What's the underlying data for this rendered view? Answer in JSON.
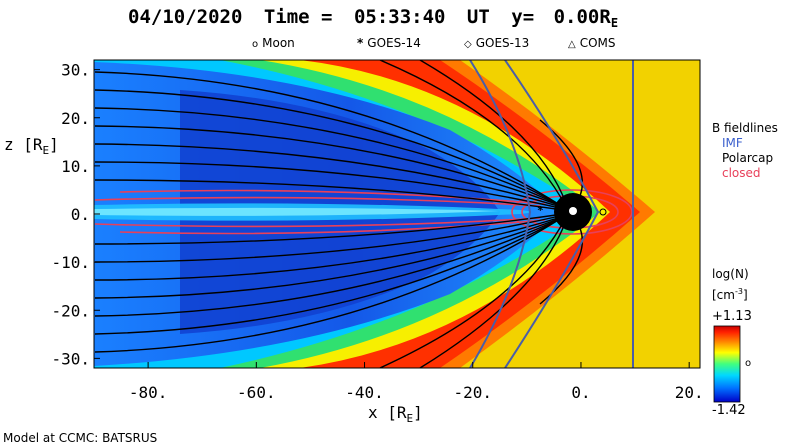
{
  "header": {
    "date": "04/10/2020",
    "time_label": "Time =",
    "time": "05:33:40",
    "time_unit": "UT",
    "slice_label": "y=",
    "slice_value": "0.00",
    "slice_unit": "R",
    "slice_unit_sub": "E"
  },
  "markers": [
    {
      "symbol": "o",
      "label": "Moon"
    },
    {
      "symbol": "*",
      "label": "GOES-14"
    },
    {
      "symbol": "◇",
      "label": "GOES-13"
    },
    {
      "symbol": "△",
      "label": "COMS"
    }
  ],
  "legend": {
    "title": "B fieldlines",
    "items": [
      {
        "label": "IMF",
        "color": "#3a5fcd"
      },
      {
        "label": "Polarcap",
        "color": "#000000"
      },
      {
        "label": "closed",
        "color": "#e8405a"
      }
    ]
  },
  "colorbar": {
    "title": "log(N)",
    "unit_open": "[cm",
    "unit_exp": "-3",
    "unit_close": "]",
    "max_label": "+1.13",
    "mid_label": "o",
    "min_label": "-1.42",
    "colors": [
      "#0000c8",
      "#0070ff",
      "#00d8ff",
      "#40ff80",
      "#ffff00",
      "#ff8000",
      "#ff2000",
      "#c80000"
    ]
  },
  "footer": {
    "credit": "Model at CCMC: BATSRUS"
  },
  "chart_data": {
    "type": "heatmap",
    "title": "04/10/2020 Time = 05:33:40 UT y= 0.00RE",
    "xlabel_main": "x [R",
    "xlabel_sub": "E",
    "xlabel_close": "]",
    "ylabel_main": "z [R",
    "ylabel_sub": "E",
    "ylabel_close": "]",
    "xlim": [
      -90,
      22
    ],
    "ylim": [
      -32,
      32
    ],
    "x_ticks": [
      {
        "value": -80,
        "label": "-80."
      },
      {
        "value": -60,
        "label": "-60."
      },
      {
        "value": -40,
        "label": "-40."
      },
      {
        "value": -20,
        "label": "-20."
      },
      {
        "value": 0,
        "label": "0."
      },
      {
        "value": 20,
        "label": "20."
      }
    ],
    "y_ticks": [
      {
        "value": 30,
        "label": "30."
      },
      {
        "value": 20,
        "label": "20."
      },
      {
        "value": 10,
        "label": "10."
      },
      {
        "value": 0,
        "label": "0."
      },
      {
        "value": -10,
        "label": "-10."
      },
      {
        "value": -20,
        "label": "-20."
      },
      {
        "value": -30,
        "label": "-30."
      }
    ],
    "value_label": "log(N)",
    "value_range": [
      -1.42,
      1.13
    ],
    "features": {
      "bow_shock_nose_x": 15,
      "magnetopause_nose_x": 10,
      "imf_line_x": [
        11,
        2,
        -5
      ],
      "earth": [
        0,
        0
      ]
    }
  }
}
